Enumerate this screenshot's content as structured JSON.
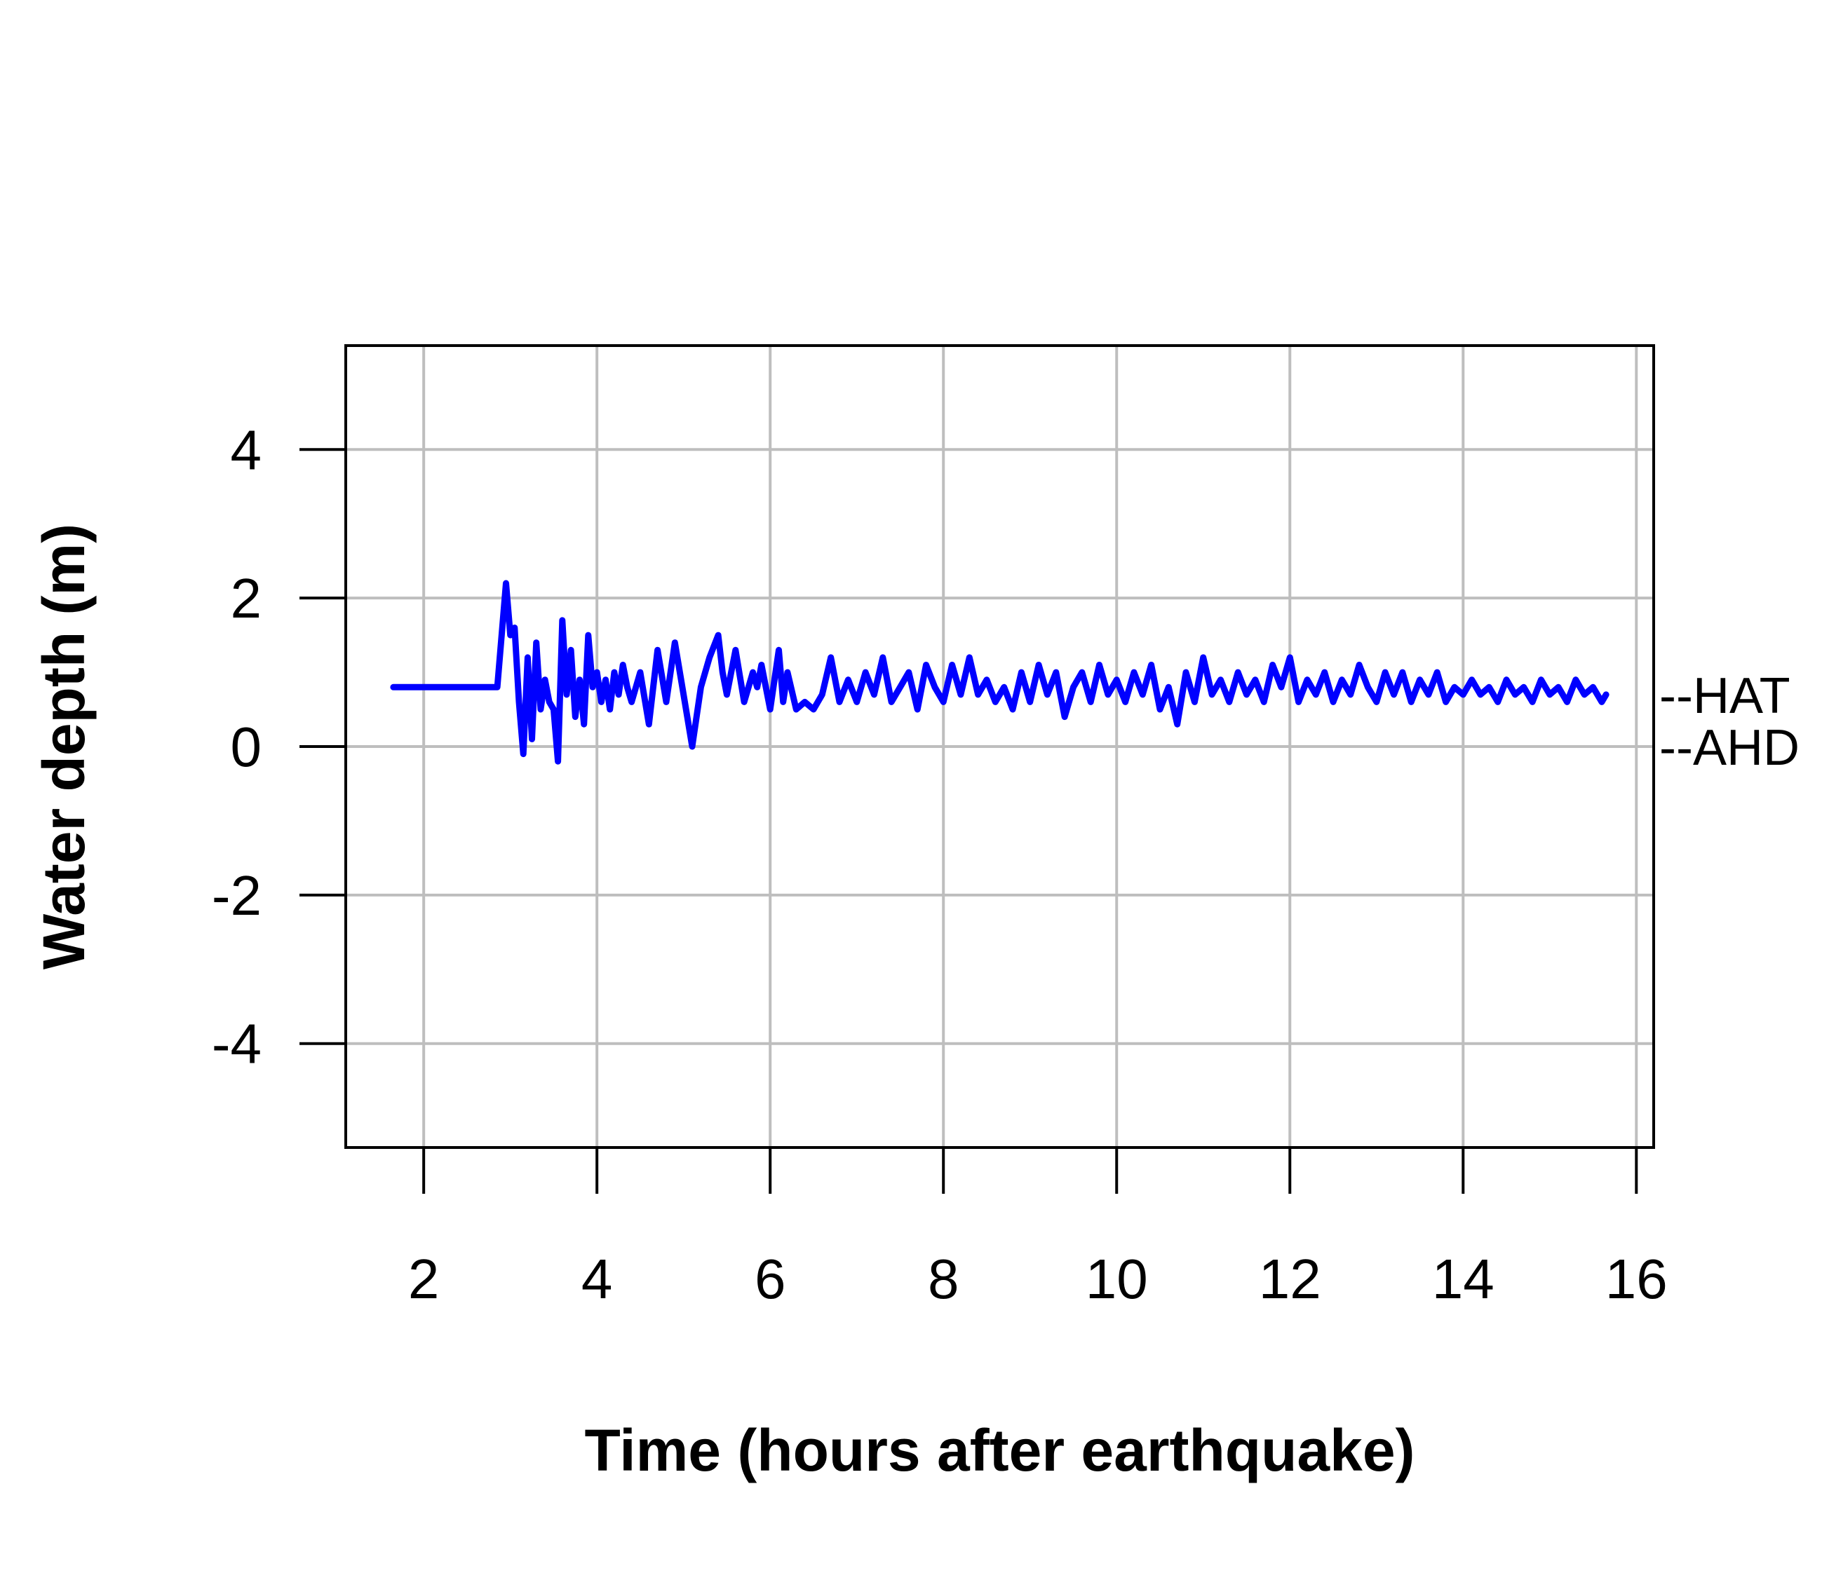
{
  "chart_data": {
    "type": "line",
    "title": "",
    "xlabel": "Time (hours after earthquake)",
    "ylabel": "Water depth (m)",
    "xlim": [
      1.1,
      16.2
    ],
    "ylim": [
      -5.4,
      5.4
    ],
    "xticks": [
      2,
      4,
      6,
      8,
      10,
      12,
      14,
      16
    ],
    "yticks": [
      -4,
      -2,
      0,
      2,
      4
    ],
    "grid": true,
    "series": [
      {
        "color": "#0000ff",
        "x": [
          1.65,
          2.0,
          2.4,
          2.7,
          2.85,
          2.95,
          3.0,
          3.05,
          3.1,
          3.15,
          3.2,
          3.25,
          3.3,
          3.35,
          3.4,
          3.45,
          3.5,
          3.55,
          3.6,
          3.65,
          3.7,
          3.75,
          3.8,
          3.85,
          3.9,
          3.95,
          4.0,
          4.05,
          4.1,
          4.15,
          4.2,
          4.25,
          4.3,
          4.35,
          4.4,
          4.5,
          4.6,
          4.7,
          4.8,
          4.9,
          5.0,
          5.1,
          5.2,
          5.3,
          5.4,
          5.45,
          5.5,
          5.6,
          5.7,
          5.8,
          5.85,
          5.9,
          6.0,
          6.1,
          6.15,
          6.2,
          6.3,
          6.4,
          6.5,
          6.6,
          6.7,
          6.8,
          6.9,
          7.0,
          7.1,
          7.2,
          7.3,
          7.4,
          7.5,
          7.6,
          7.7,
          7.8,
          7.9,
          8.0,
          8.1,
          8.2,
          8.3,
          8.4,
          8.5,
          8.6,
          8.7,
          8.8,
          8.9,
          9.0,
          9.1,
          9.2,
          9.3,
          9.4,
          9.5,
          9.6,
          9.7,
          9.8,
          9.9,
          10.0,
          10.1,
          10.2,
          10.3,
          10.4,
          10.5,
          10.6,
          10.7,
          10.8,
          10.9,
          11.0,
          11.1,
          11.2,
          11.3,
          11.4,
          11.5,
          11.6,
          11.7,
          11.8,
          11.9,
          12.0,
          12.1,
          12.2,
          12.3,
          12.4,
          12.5,
          12.6,
          12.7,
          12.8,
          12.9,
          13.0,
          13.1,
          13.2,
          13.3,
          13.4,
          13.5,
          13.6,
          13.7,
          13.8,
          13.9,
          14.0,
          14.1,
          14.2,
          14.3,
          14.4,
          14.5,
          14.6,
          14.7,
          14.8,
          14.9,
          15.0,
          15.1,
          15.2,
          15.3,
          15.4,
          15.5,
          15.6,
          15.65
        ],
        "y": [
          0.8,
          0.8,
          0.8,
          0.8,
          0.8,
          2.2,
          1.5,
          1.6,
          0.6,
          -0.1,
          1.2,
          0.1,
          1.4,
          0.5,
          0.9,
          0.6,
          0.5,
          -0.2,
          1.7,
          0.7,
          1.3,
          0.4,
          0.9,
          0.3,
          1.5,
          0.8,
          1.0,
          0.6,
          0.9,
          0.5,
          1.0,
          0.7,
          1.1,
          0.8,
          0.6,
          1.0,
          0.3,
          1.3,
          0.6,
          1.4,
          0.7,
          0.0,
          0.8,
          1.2,
          1.5,
          1.0,
          0.7,
          1.3,
          0.6,
          1.0,
          0.8,
          1.1,
          0.5,
          1.3,
          0.6,
          1.0,
          0.5,
          0.6,
          0.5,
          0.7,
          1.2,
          0.6,
          0.9,
          0.6,
          1.0,
          0.7,
          1.2,
          0.6,
          0.8,
          1.0,
          0.5,
          1.1,
          0.8,
          0.6,
          1.1,
          0.7,
          1.2,
          0.7,
          0.9,
          0.6,
          0.8,
          0.5,
          1.0,
          0.6,
          1.1,
          0.7,
          1.0,
          0.4,
          0.8,
          1.0,
          0.6,
          1.1,
          0.7,
          0.9,
          0.6,
          1.0,
          0.7,
          1.1,
          0.5,
          0.8,
          0.3,
          1.0,
          0.6,
          1.2,
          0.7,
          0.9,
          0.6,
          1.0,
          0.7,
          0.9,
          0.6,
          1.1,
          0.8,
          1.2,
          0.6,
          0.9,
          0.7,
          1.0,
          0.6,
          0.9,
          0.7,
          1.1,
          0.8,
          0.6,
          1.0,
          0.7,
          1.0,
          0.6,
          0.9,
          0.7,
          1.0,
          0.6,
          0.8,
          0.7,
          0.9,
          0.7,
          0.8,
          0.6,
          0.9,
          0.7,
          0.8,
          0.6,
          0.9,
          0.7,
          0.8,
          0.6,
          0.9,
          0.7,
          0.8,
          0.6,
          0.7
        ]
      }
    ],
    "reference_lines": [
      {
        "label": "--HAT",
        "y": 0.7
      },
      {
        "label": "--AHD",
        "y": 0.0
      }
    ]
  }
}
